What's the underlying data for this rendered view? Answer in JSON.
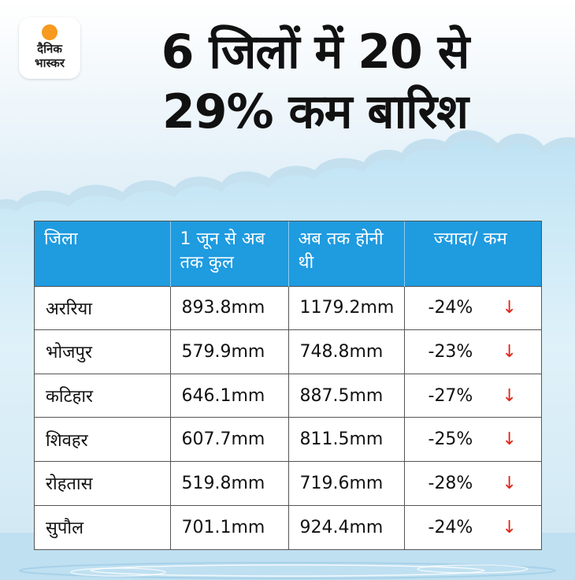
{
  "logo": {
    "line1": "दैनिक",
    "line2": "भास्कर",
    "sun_color": "#f79a1e"
  },
  "title": {
    "line1": "6 जिलों में 20 से",
    "line2": "29% कम बारिश"
  },
  "table": {
    "headers": [
      "जिला",
      "1 जून से अब तक कुल",
      "अब तक होनी थी",
      "ज्यादा/ कम"
    ],
    "rows": [
      {
        "district": "अररिया",
        "total": "893.8mm",
        "expected": "1179.2mm",
        "diff": "-24%",
        "trend": "down-arrow-icon"
      },
      {
        "district": "भोजपुर",
        "total": "579.9mm",
        "expected": "748.8mm",
        "diff": "-23%",
        "trend": "down-arrow-icon"
      },
      {
        "district": "कटिहार",
        "total": "646.1mm",
        "expected": "887.5mm",
        "diff": "-27%",
        "trend": "down-arrow-icon"
      },
      {
        "district": "शिवहर",
        "total": "607.7mm",
        "expected": "811.5mm",
        "diff": "-25%",
        "trend": "down-arrow-icon"
      },
      {
        "district": "रोहतास",
        "total": "519.8mm",
        "expected": "719.6mm",
        "diff": "-28%",
        "trend": "down-arrow-icon"
      },
      {
        "district": "सुपौल",
        "total": "701.1mm",
        "expected": "924.4mm",
        "diff": "-24%",
        "trend": "down-arrow-icon"
      }
    ]
  },
  "colors": {
    "header_bg": "#1f9be0",
    "arrow": "#e0261a"
  }
}
